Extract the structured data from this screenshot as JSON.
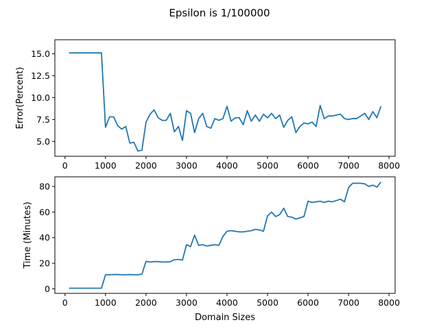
{
  "figure": {
    "title": "Epsilon is 1/100000"
  },
  "chart_data": [
    {
      "type": "line",
      "title": "",
      "xlabel": "",
      "ylabel": "Error(Percent)",
      "xlim": [
        -250,
        8150
      ],
      "ylim": [
        3.3,
        16.6
      ],
      "xticks": [
        0,
        1000,
        2000,
        3000,
        4000,
        5000,
        6000,
        7000,
        8000
      ],
      "yticks": [
        5.0,
        7.5,
        10.0,
        12.5,
        15.0
      ],
      "ytick_labels": [
        "5.0",
        "7.5",
        "10.0",
        "12.5",
        "15.0"
      ],
      "grid": false,
      "color": "#1f77b4",
      "series": [
        {
          "x": [
            100,
            200,
            300,
            400,
            500,
            600,
            700,
            800,
            900,
            1000,
            1100,
            1200,
            1300,
            1400,
            1500,
            1600,
            1700,
            1800,
            1900,
            2000,
            2100,
            2200,
            2300,
            2400,
            2500,
            2600,
            2700,
            2800,
            2900,
            3000,
            3100,
            3200,
            3300,
            3400,
            3500,
            3600,
            3700,
            3800,
            3900,
            4000,
            4100,
            4200,
            4300,
            4400,
            4500,
            4600,
            4700,
            4800,
            4900,
            5000,
            5100,
            5200,
            5300,
            5400,
            5500,
            5600,
            5700,
            5800,
            5900,
            6000,
            6100,
            6200,
            6300,
            6400,
            6500,
            6600,
            6700,
            6800,
            6900,
            7000,
            7100,
            7200,
            7300,
            7400,
            7500,
            7600,
            7700,
            7800
          ],
          "y": [
            15.1,
            15.1,
            15.1,
            15.1,
            15.1,
            15.1,
            15.1,
            15.1,
            15.1,
            6.6,
            7.8,
            7.8,
            6.8,
            6.4,
            6.7,
            4.8,
            4.9,
            3.9,
            4.0,
            7.2,
            8.1,
            8.6,
            7.7,
            7.4,
            7.4,
            8.2,
            6.1,
            6.7,
            5.1,
            8.5,
            8.2,
            6.0,
            7.6,
            8.2,
            6.7,
            6.5,
            7.6,
            7.4,
            7.6,
            9.0,
            7.3,
            7.7,
            7.7,
            6.9,
            8.5,
            7.3,
            8.0,
            7.3,
            8.1,
            7.7,
            8.2,
            7.6,
            8.0,
            6.6,
            7.4,
            7.8,
            6.0,
            6.7,
            7.1,
            7.0,
            7.2,
            6.7,
            9.1,
            7.6,
            7.9,
            7.9,
            8.0,
            8.1,
            7.6,
            7.5,
            7.6,
            7.6,
            7.9,
            8.2,
            7.5,
            8.4,
            7.7,
            9.0
          ]
        }
      ]
    },
    {
      "type": "line",
      "title": "",
      "xlabel": "Domain Sizes",
      "ylabel": "Time (Minutes)",
      "xlim": [
        -250,
        8150
      ],
      "ylim": [
        -3.5,
        87.5
      ],
      "xticks": [
        0,
        1000,
        2000,
        3000,
        4000,
        5000,
        6000,
        7000,
        8000
      ],
      "yticks": [
        0,
        20,
        40,
        60,
        80
      ],
      "ytick_labels": [
        "0",
        "20",
        "40",
        "60",
        "80"
      ],
      "grid": false,
      "color": "#1f77b4",
      "series": [
        {
          "x": [
            100,
            200,
            300,
            400,
            500,
            600,
            700,
            800,
            900,
            1000,
            1100,
            1200,
            1300,
            1400,
            1500,
            1600,
            1700,
            1800,
            1900,
            2000,
            2100,
            2200,
            2300,
            2400,
            2500,
            2600,
            2700,
            2800,
            2900,
            3000,
            3100,
            3200,
            3300,
            3400,
            3500,
            3600,
            3700,
            3800,
            3900,
            4000,
            4100,
            4200,
            4300,
            4400,
            4500,
            4600,
            4700,
            4800,
            4900,
            5000,
            5100,
            5200,
            5300,
            5400,
            5500,
            5600,
            5700,
            5800,
            5900,
            6000,
            6100,
            6200,
            6300,
            6400,
            6500,
            6600,
            6700,
            6800,
            6900,
            7000,
            7100,
            7200,
            7300,
            7400,
            7500,
            7600,
            7700,
            7800
          ],
          "y": [
            0.5,
            0.5,
            0.5,
            0.5,
            0.5,
            0.5,
            0.5,
            0.5,
            0.5,
            11.0,
            11.0,
            11.2,
            11.2,
            11.0,
            11.0,
            11.2,
            11.0,
            11.0,
            11.5,
            21.5,
            21.0,
            21.3,
            21.3,
            21.0,
            21.0,
            21.2,
            22.8,
            23.0,
            22.5,
            34.5,
            33.0,
            42.0,
            34.0,
            34.5,
            33.5,
            34.0,
            34.5,
            34.0,
            41.0,
            45.0,
            45.5,
            45.0,
            44.5,
            44.5,
            45.0,
            45.5,
            46.5,
            46.0,
            45.0,
            57.0,
            60.0,
            56.5,
            58.0,
            63.0,
            56.5,
            56.0,
            54.5,
            55.5,
            56.5,
            68.5,
            67.5,
            68.0,
            68.5,
            67.5,
            68.5,
            68.0,
            69.0,
            70.0,
            68.0,
            79.0,
            82.5,
            82.5,
            82.5,
            82.0,
            80.0,
            81.0,
            79.5,
            83.5
          ]
        }
      ]
    }
  ]
}
